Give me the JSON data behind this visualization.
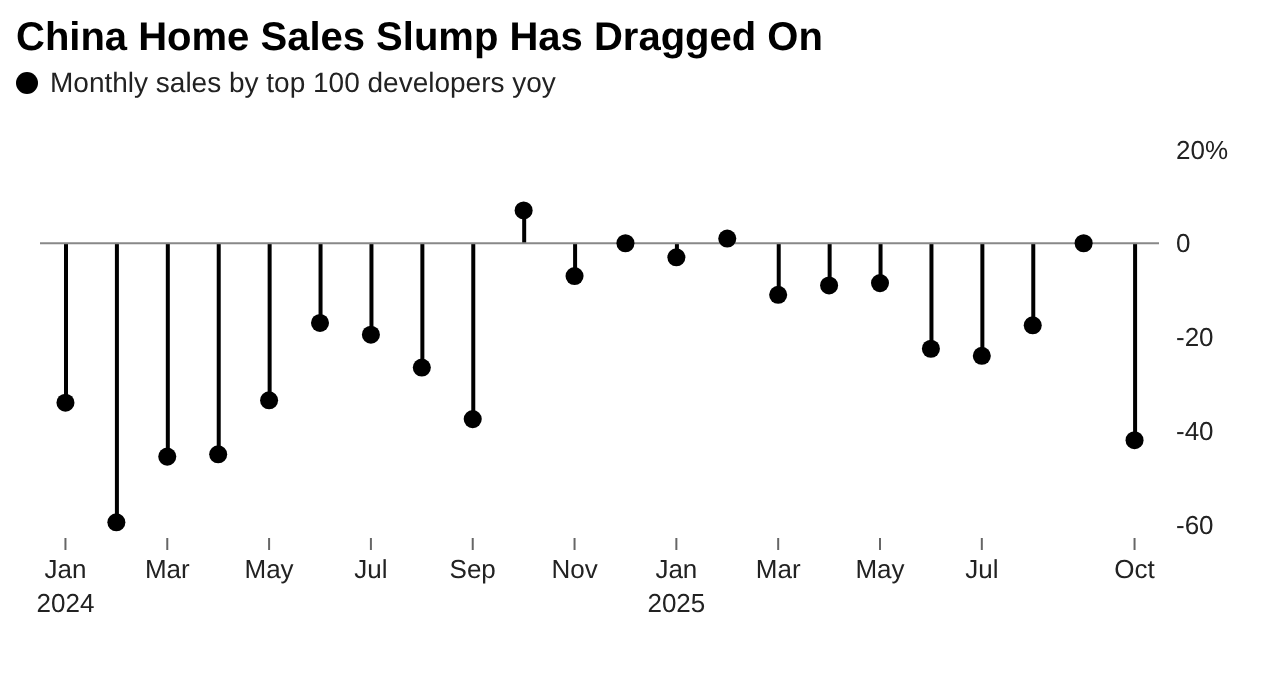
{
  "chart_data": {
    "type": "lollipop",
    "title": "China Home Sales Slump Has Dragged On",
    "categories": [
      "Jan\n2024",
      null,
      "Mar",
      null,
      "May",
      null,
      "Jul",
      null,
      "Sep",
      null,
      "Nov",
      null,
      "Jan\n2025",
      null,
      "Mar",
      null,
      "May",
      null,
      "Jul",
      null,
      null,
      "Oct"
    ],
    "series": [
      {
        "name": "Monthly sales by top 100 developers yoy",
        "color": "#000000",
        "values": [
          -34,
          -59.5,
          -45.5,
          -45,
          -33.5,
          -17,
          -19.5,
          -26.5,
          -37.5,
          7,
          -7,
          0,
          -3,
          1,
          -11,
          -9,
          -8.5,
          -22.5,
          -24,
          -17.5,
          0,
          -42
        ]
      }
    ],
    "ylim": [
      -62,
      25
    ],
    "yticks": [
      {
        "value": 20,
        "label": "20%"
      },
      0,
      -20,
      -40,
      -60
    ],
    "ref_lines": [
      {
        "axis": "y",
        "value": 0,
        "color": "#888888"
      }
    ],
    "legend": "top left",
    "marker": "circle",
    "grid": false
  }
}
